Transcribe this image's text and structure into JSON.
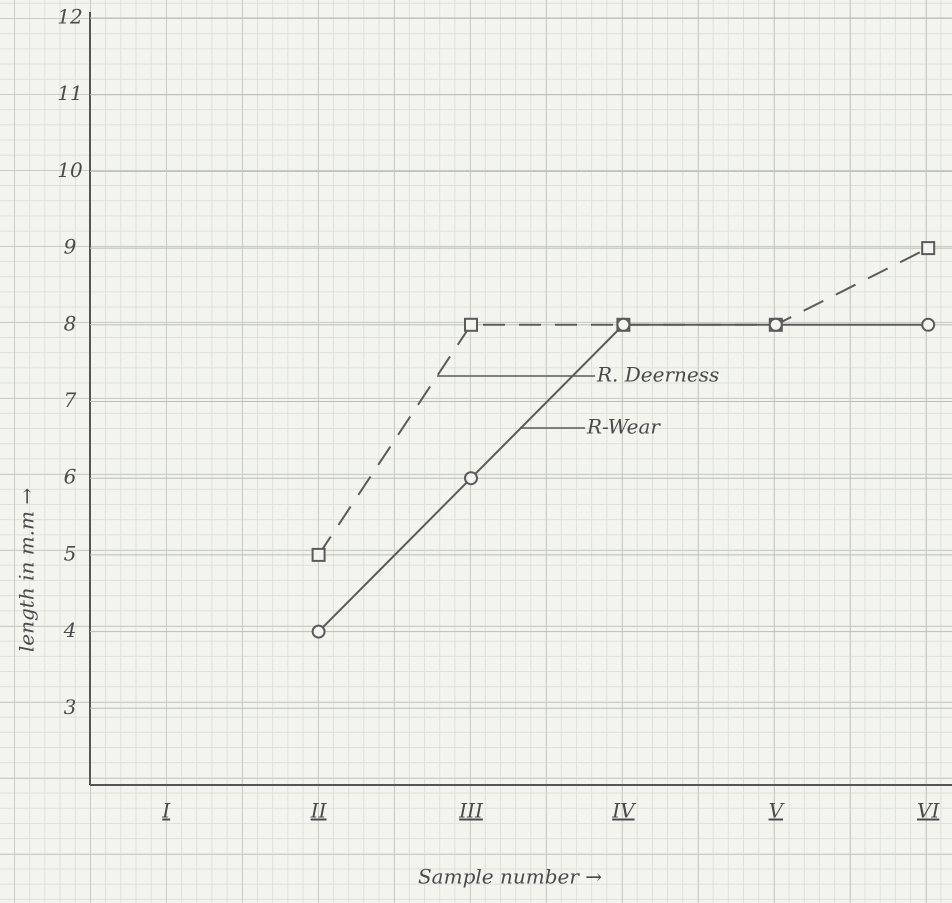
{
  "chart_data": {
    "type": "line",
    "categories": [
      "I",
      "II",
      "III",
      "IV",
      "V",
      "VI"
    ],
    "series": [
      {
        "name": "R. Deerness",
        "color": "#5a5a5a",
        "line_style": "dashed",
        "marker": "square",
        "values": [
          null,
          5,
          8,
          8,
          8,
          9
        ]
      },
      {
        "name": "R-Wear",
        "color": "#5a5a5a",
        "line_style": "solid",
        "marker": "circle",
        "values": [
          null,
          4,
          6,
          8,
          8,
          8
        ]
      }
    ],
    "ylim": [
      2,
      12
    ],
    "yticks": [
      3,
      4,
      5,
      6,
      7,
      8,
      9,
      10,
      11,
      12
    ],
    "x_label": "Sample number →",
    "y_label": "length in m.m →",
    "grid": true
  }
}
